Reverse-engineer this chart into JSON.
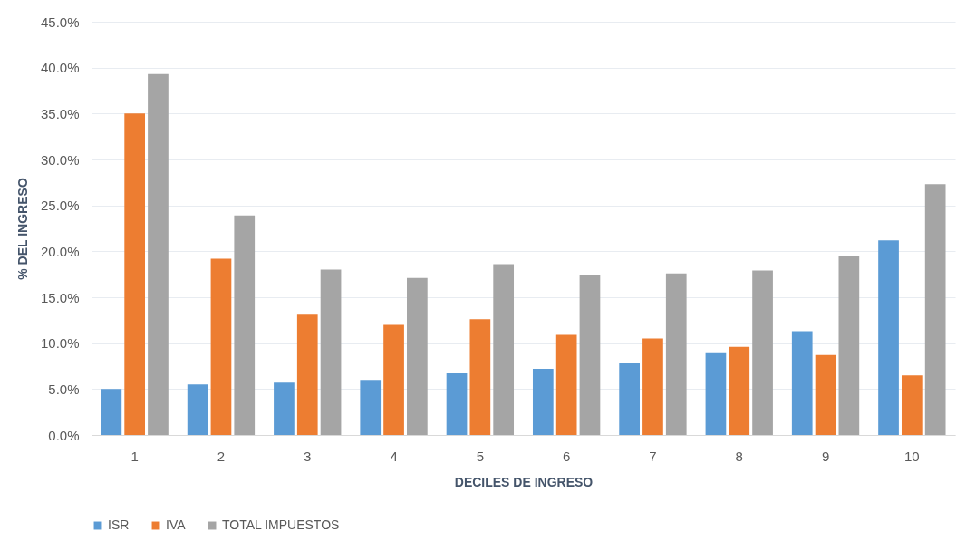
{
  "chart_data": {
    "type": "bar",
    "xlabel": "DECILES DE INGRESO",
    "ylabel": "% DEL INGRESO",
    "categories": [
      "1",
      "2",
      "3",
      "4",
      "5",
      "6",
      "7",
      "8",
      "9",
      "10"
    ],
    "series": [
      {
        "name": "ISR",
        "color": "#5b9bd5",
        "values": [
          5.0,
          5.5,
          5.7,
          6.0,
          6.7,
          7.2,
          7.8,
          9.0,
          11.3,
          21.2
        ]
      },
      {
        "name": "IVA",
        "color": "#ed7d31",
        "values": [
          35.0,
          19.2,
          13.1,
          12.0,
          12.6,
          10.9,
          10.5,
          9.6,
          8.7,
          6.5
        ]
      },
      {
        "name": "TOTAL IMPUESTOS",
        "color": "#a5a5a5",
        "values": [
          39.3,
          23.9,
          18.0,
          17.1,
          18.6,
          17.4,
          17.6,
          17.9,
          19.5,
          27.3
        ]
      }
    ],
    "ylim": [
      0,
      45
    ],
    "yticks": [
      {
        "value": 0,
        "label": "0.0%"
      },
      {
        "value": 5,
        "label": "5.0%"
      },
      {
        "value": 10,
        "label": "10.0%"
      },
      {
        "value": 15,
        "label": "15.0%"
      },
      {
        "value": 20,
        "label": "20.0%"
      },
      {
        "value": 25,
        "label": "25.0%"
      },
      {
        "value": 30,
        "label": "30.0%"
      },
      {
        "value": 35,
        "label": "35.0%"
      },
      {
        "value": 40,
        "label": "40.0%"
      },
      {
        "value": 45,
        "label": "45.0%"
      }
    ],
    "grid": "y",
    "legend": "bottom"
  }
}
